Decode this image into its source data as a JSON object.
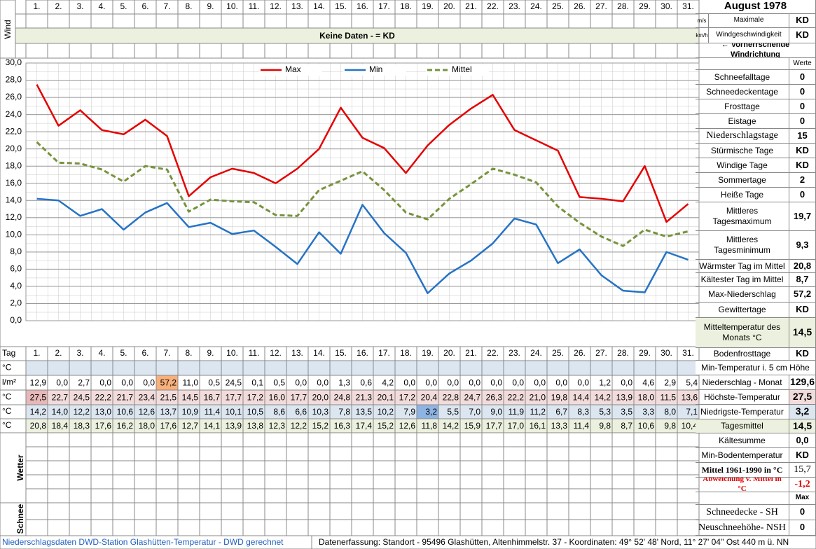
{
  "header": {
    "title": "August 1978",
    "wind_label": "Wind",
    "no_data": "Keine Daten -  = KD",
    "units": [
      "m/s",
      "km/h"
    ],
    "wind_texts": [
      "Maximale",
      "Windgeschwindigkeit"
    ],
    "wind_values": [
      "KD",
      "KD"
    ],
    "wind_direction": "← Vorherrschende Windrichtung",
    "values_header": "Werte"
  },
  "chart_data": {
    "type": "line",
    "categories": [
      "1.",
      "2.",
      "3.",
      "4.",
      "5.",
      "6.",
      "7.",
      "8.",
      "9.",
      "10.",
      "11.",
      "12.",
      "13.",
      "14.",
      "15.",
      "16.",
      "17.",
      "18.",
      "19.",
      "20.",
      "21.",
      "22.",
      "23.",
      "24.",
      "25.",
      "26.",
      "27.",
      "28.",
      "29.",
      "30.",
      "31."
    ],
    "series": [
      {
        "name": "Max",
        "color": "#e60000",
        "style": "solid",
        "values": [
          27.5,
          22.7,
          24.5,
          22.2,
          21.7,
          23.4,
          21.5,
          14.5,
          16.7,
          17.7,
          17.2,
          16.0,
          17.7,
          20.0,
          24.8,
          21.3,
          20.1,
          17.2,
          20.4,
          22.8,
          24.7,
          26.3,
          22.2,
          21.0,
          19.8,
          14.4,
          14.2,
          13.9,
          18.0,
          11.5,
          13.6
        ],
        "value_labels": [
          "27,5",
          "22,7",
          "24,5",
          "22,2",
          "21,7",
          "23,4",
          "21,5",
          "14,5",
          "16,7",
          "17,7",
          "17,2",
          "16,0",
          "17,7",
          "20,0",
          "24,8",
          "21,3",
          "20,1",
          "17,2",
          "20,4",
          "22,8",
          "24,7",
          "26,3",
          "22,2",
          "21,0",
          "19,8",
          "14,4",
          "14,2",
          "13,9",
          "18,0",
          "11,5",
          "13,6"
        ]
      },
      {
        "name": "Min",
        "color": "#2673c5",
        "style": "solid",
        "values": [
          14.2,
          14.0,
          12.2,
          13.0,
          10.6,
          12.6,
          13.7,
          10.9,
          11.4,
          10.1,
          10.5,
          8.6,
          6.6,
          10.3,
          7.8,
          13.5,
          10.2,
          7.9,
          3.2,
          5.5,
          7.0,
          9.0,
          11.9,
          11.2,
          6.7,
          8.3,
          5.3,
          3.5,
          3.3,
          8.0,
          7.1
        ],
        "value_labels": [
          "14,2",
          "14,0",
          "12,2",
          "13,0",
          "10,6",
          "12,6",
          "13,7",
          "10,9",
          "11,4",
          "10,1",
          "10,5",
          "8,6",
          "6,6",
          "10,3",
          "7,8",
          "13,5",
          "10,2",
          "7,9",
          "3,2",
          "5,5",
          "7,0",
          "9,0",
          "11,9",
          "11,2",
          "6,7",
          "8,3",
          "5,3",
          "3,5",
          "3,3",
          "8,0",
          "7,1"
        ]
      },
      {
        "name": "Mittel",
        "color": "#77933c",
        "style": "dashed",
        "values": [
          20.8,
          18.4,
          18.3,
          17.6,
          16.2,
          18.0,
          17.6,
          12.7,
          14.1,
          13.9,
          13.8,
          12.3,
          12.2,
          15.2,
          16.3,
          17.4,
          15.2,
          12.6,
          11.8,
          14.2,
          15.9,
          17.7,
          17.0,
          16.1,
          13.3,
          11.4,
          9.8,
          8.7,
          10.6,
          9.8,
          10.4
        ],
        "value_labels": [
          "20,8",
          "18,4",
          "18,3",
          "17,6",
          "16,2",
          "18,0",
          "17,6",
          "12,7",
          "14,1",
          "13,9",
          "13,8",
          "12,3",
          "12,2",
          "15,2",
          "16,3",
          "17,4",
          "15,2",
          "12,6",
          "11,8",
          "14,2",
          "15,9",
          "17,7",
          "17,0",
          "16,1",
          "13,3",
          "11,4",
          "9,8",
          "8,7",
          "10,6",
          "9,8",
          "10,4"
        ]
      }
    ],
    "ylim": [
      0,
      30
    ],
    "yticks": [
      {
        "value": 0,
        "label": "0,0"
      },
      {
        "value": 2,
        "label": "2,0"
      },
      {
        "value": 4,
        "label": "4,0"
      },
      {
        "value": 6,
        "label": "6,0"
      },
      {
        "value": 8,
        "label": "8,0"
      },
      {
        "value": 10,
        "label": "10,0"
      },
      {
        "value": 12,
        "label": "12,0"
      },
      {
        "value": 14,
        "label": "14,0"
      },
      {
        "value": 16,
        "label": "16,0"
      },
      {
        "value": 18,
        "label": "18,0"
      },
      {
        "value": 20,
        "label": "20,0"
      },
      {
        "value": 22,
        "label": "22,0"
      },
      {
        "value": 24,
        "label": "24,0"
      },
      {
        "value": 26,
        "label": "26,0"
      },
      {
        "value": 28,
        "label": "28,0"
      },
      {
        "value": 30,
        "label": "30,0"
      }
    ],
    "grid": true,
    "legend": "top"
  },
  "table": {
    "day_label": "Tag",
    "unit_labels": [
      "°C",
      "l/m²",
      "°C",
      "°C",
      "°C"
    ],
    "precipitation": [
      "12,9",
      "0,0",
      "2,7",
      "0,0",
      "0,0",
      "0,0",
      "57,2",
      "11,0",
      "0,5",
      "24,5",
      "0,1",
      "0,5",
      "0,0",
      "0,0",
      "1,3",
      "0,6",
      "4,2",
      "0,0",
      "0,0",
      "0,0",
      "0,0",
      "0,0",
      "0,0",
      "0,0",
      "0,0",
      "0,0",
      "1,2",
      "0,0",
      "4,6",
      "2,9",
      "5,4"
    ],
    "weather_label": "Wetter",
    "snow_label": "Schnee"
  },
  "summary": [
    {
      "label": "Schneefalltage",
      "value": "0"
    },
    {
      "label": "Schneedeckentage",
      "value": "0"
    },
    {
      "label": "Frosttage",
      "value": "0"
    },
    {
      "label": "Eistage",
      "value": "0"
    },
    {
      "label": "Niederschlagstage",
      "value": "15"
    },
    {
      "label": "Stürmische Tage",
      "value": "KD"
    },
    {
      "label": "Windige Tage",
      "value": "KD"
    },
    {
      "label": "Sommertage",
      "value": "2"
    },
    {
      "label": "Heiße Tage",
      "value": "0"
    },
    {
      "label": "Mittleres Tagesmaximum",
      "value": "19,7"
    },
    {
      "label": "Mittleres Tagesminimum",
      "value": "9,3"
    },
    {
      "label": "Wärmster Tag im Mittel",
      "value": "20,8"
    },
    {
      "label": "Kältester Tag im Mittel",
      "value": "8,7"
    },
    {
      "label": "Max-Niederschlag",
      "value": "57,2"
    },
    {
      "label": "Gewittertage",
      "value": "KD"
    },
    {
      "label": "Mitteltemperatur des Monats °C",
      "value": "14,5"
    },
    {
      "label": "Bodenfrosttage",
      "value": "KD"
    },
    {
      "label": "Min-Temperatur i. 5 cm Höhe"
    },
    {
      "label": "Niederschlag - Monat",
      "value": "129,6"
    },
    {
      "label": "Höchste-Temperatur",
      "value": "27,5"
    },
    {
      "label": "Niedrigste-Temperatur",
      "value": "3,2"
    },
    {
      "label": "Tagesmittel",
      "value": "14,5"
    },
    {
      "label": "Kältesumme",
      "value": "0,0"
    },
    {
      "label": "Min-Bodentemperatur",
      "value": "KD"
    },
    {
      "label": "Mittel 1961-1990 in °C",
      "value": "15,7"
    },
    {
      "label": "Abweichung v. Mittel in °C",
      "value": "-1,2"
    },
    {
      "value": "Max"
    },
    {
      "label": "Schneedecke -   SH",
      "value": "0"
    },
    {
      "label": "Neuschneehöhe- NSH",
      "value": "0"
    }
  ],
  "footer": {
    "left": "Niederschlagsdaten DWD-Station Glashütten-Temperatur -  DWD gerechnet",
    "right": "Datenerfassung: Standort -  95496 Glashütten, Altenhimmelstr. 37 - Koordinaten:  49° 52' 48' Nord,   11° 27' 04'' Ost  440 m ü. NN"
  }
}
